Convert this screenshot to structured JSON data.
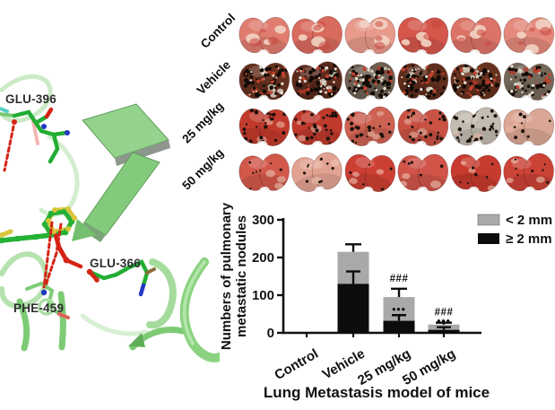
{
  "molecular_panel": {
    "residues": [
      {
        "label": "GLU-396"
      },
      {
        "label": "GLU-366"
      },
      {
        "label": "PHE-459"
      }
    ],
    "colors": {
      "protein_ribbon": "#8fd489",
      "stick_carbon": "#25b135",
      "oxygen": "#d42315",
      "nitrogen": "#2336c4",
      "ligand_highlight": "#d9c53b",
      "hbond_dash": "#d42315"
    }
  },
  "lung_grid": {
    "columns": 6,
    "rows": [
      {
        "label": "Control",
        "bases": [
          "#e07d70",
          "#d96a5e",
          "#e89a8b",
          "#d5564b",
          "#dc7367",
          "#e4897c"
        ],
        "patches": [
          {
            "color": "#f2d4c3",
            "count": 3,
            "opacity": 0.9,
            "rmin": 4,
            "rmax": 9
          },
          {
            "color": "#c8473c",
            "count": 3,
            "opacity": 0.55,
            "rmin": 3,
            "rmax": 7
          }
        ],
        "specks": [],
        "speck_scale": [
          1,
          1,
          1,
          1,
          1,
          1
        ]
      },
      {
        "label": "Vehicle",
        "bases": [
          "#64301f",
          "#5c2a1c",
          "#6e6053",
          "#5f2d1d",
          "#66321f",
          "#74685a"
        ],
        "patches": [
          {
            "color": "#d9d1c2",
            "count": 5,
            "opacity": 0.85,
            "rmin": 2,
            "rmax": 5
          },
          {
            "color": "#b03a27",
            "count": 4,
            "opacity": 0.8,
            "rmin": 2,
            "rmax": 5
          }
        ],
        "specks": [
          {
            "color": "#120b06",
            "count": 48,
            "rmin": 1.1,
            "rmax": 2.6
          },
          {
            "color": "#e6dfd1",
            "count": 16,
            "rmin": 0.8,
            "rmax": 1.8
          },
          {
            "color": "#c2432f",
            "count": 12,
            "rmin": 1,
            "rmax": 2.2
          }
        ],
        "speck_scale": [
          1,
          1,
          1.1,
          1,
          1,
          0.9
        ]
      },
      {
        "label": "25 mg/kg",
        "bases": [
          "#c23a2c",
          "#bf392c",
          "#cd6152",
          "#ca5244",
          "#c3bcb0",
          "#dba795"
        ],
        "patches": [
          {
            "color": "#e9b6a3",
            "count": 3,
            "opacity": 0.6,
            "rmin": 3,
            "rmax": 6
          }
        ],
        "specks": [
          {
            "color": "#1b110a",
            "count": 24,
            "rmin": 1,
            "rmax": 2.3
          }
        ],
        "speck_scale": [
          1.2,
          1.2,
          1,
          0.9,
          1.4,
          0.35
        ]
      },
      {
        "label": "50 mg/kg",
        "bases": [
          "#d2584a",
          "#e2a291",
          "#cc4034",
          "#d05448",
          "#c73a2e",
          "#cb4236"
        ],
        "patches": [
          {
            "color": "#eec3b1",
            "count": 3,
            "opacity": 0.6,
            "rmin": 3,
            "rmax": 6
          }
        ],
        "specks": [
          {
            "color": "#1b110a",
            "count": 7,
            "rmin": 0.9,
            "rmax": 1.8
          }
        ],
        "speck_scale": [
          1,
          1.3,
          0.7,
          0.7,
          1,
          1
        ]
      }
    ]
  },
  "chart_data": {
    "type": "bar",
    "stacked": true,
    "categories": [
      "Control",
      "Vehicle",
      "25 mg/kg",
      "50 mg/kg"
    ],
    "series": [
      {
        "name": "< 2 mm",
        "color": "#a9a9a9",
        "values": [
          0,
          85,
          63,
          14
        ]
      },
      {
        "name": "≥ 2 mm",
        "color": "#0c0c0c",
        "values": [
          0,
          130,
          32,
          8
        ]
      }
    ],
    "stack_totals": [
      0,
      215,
      95,
      22
    ],
    "error_total": [
      0,
      20,
      22,
      5
    ],
    "error_dark": [
      0,
      33,
      15,
      7
    ],
    "ylabel_lines": [
      "Numbers of pulmonary",
      "metastatic nodules"
    ],
    "yticks": [
      0,
      100,
      200,
      300
    ],
    "ylim": [
      0,
      300
    ],
    "xlabel": "Lung Metastasis model of mice",
    "legend_position": "top-right",
    "annotations": [
      {
        "category": "25 mg/kg",
        "top_symbol": "###",
        "mid_symbol": "•••"
      },
      {
        "category": "50 mg/kg",
        "top_symbol": "###",
        "mid_symbol": "•••"
      }
    ]
  }
}
